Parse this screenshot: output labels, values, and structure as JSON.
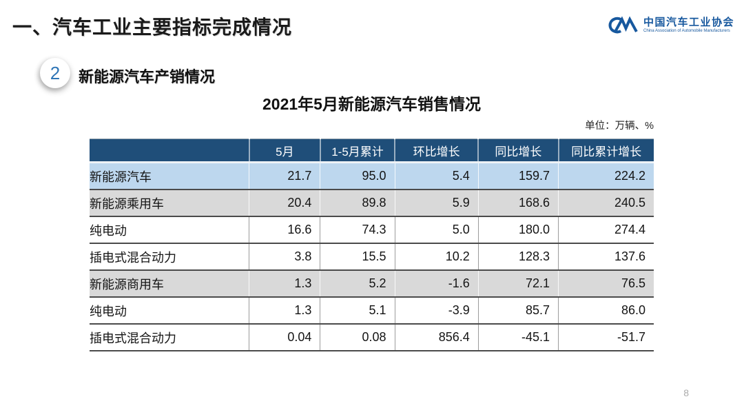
{
  "page": {
    "title": "一、汽车工业主要指标完成情况",
    "page_number": "8"
  },
  "logo": {
    "icon": "caam-logo-icon",
    "name_cn": "中国汽车工业协会",
    "name_en": "China Association of Automobile Manufacturers",
    "brand_color": "#17589e"
  },
  "section": {
    "badge_number": "2",
    "label": "新能源汽车产销情况"
  },
  "table": {
    "title": "2021年5月新能源汽车销售情况",
    "unit_label": "单位：万辆、%",
    "columns": [
      "",
      "5月",
      "1-5月累计",
      "环比增长",
      "同比增长",
      "同比累计增长"
    ],
    "rows": [
      {
        "label": "新能源汽车",
        "indent": 0,
        "style": "highlight-blue",
        "values": [
          "21.7",
          "95.0",
          "5.4",
          "159.7",
          "224.2"
        ]
      },
      {
        "label": "新能源乘用车",
        "indent": 1,
        "style": "highlight-gray",
        "values": [
          "20.4",
          "89.8",
          "5.9",
          "168.6",
          "240.5"
        ]
      },
      {
        "label": "纯电动",
        "indent": 2,
        "style": "plain",
        "values": [
          "16.6",
          "74.3",
          "5.0",
          "180.0",
          "274.4"
        ]
      },
      {
        "label": "插电式混合动力",
        "indent": 2,
        "style": "plain",
        "values": [
          "3.8",
          "15.5",
          "10.2",
          "128.3",
          "137.6"
        ]
      },
      {
        "label": "新能源商用车",
        "indent": 1,
        "style": "highlight-gray",
        "values": [
          "1.3",
          "5.2",
          "-1.6",
          "72.1",
          "76.5"
        ]
      },
      {
        "label": "纯电动",
        "indent": 2,
        "style": "plain",
        "values": [
          "1.3",
          "5.1",
          "-3.9",
          "85.7",
          "86.0"
        ]
      },
      {
        "label": "插电式混合动力",
        "indent": 2,
        "style": "plain",
        "values": [
          "0.04",
          "0.08",
          "856.4",
          "-45.1",
          "-51.7"
        ]
      }
    ],
    "colors": {
      "header_bg": "#1f4e79",
      "header_text": "#ffffff",
      "row_blue": "#bdd7ee",
      "row_gray": "#d9d9d9",
      "row_divider": "#4a4a4a"
    }
  }
}
